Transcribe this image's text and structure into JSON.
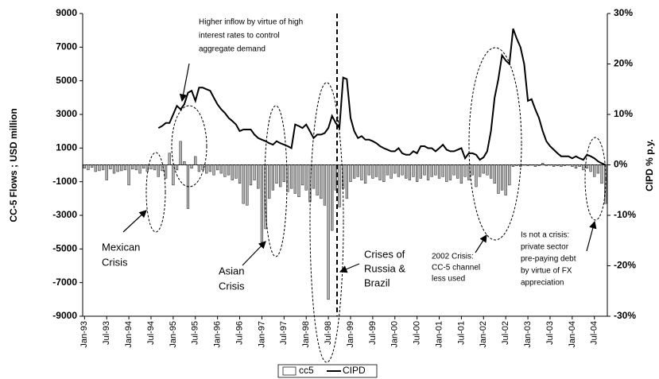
{
  "chart_data": {
    "type": "bar-line",
    "y_label": "CC-5 Flows ; USD million",
    "y2_label": "CIPD % p.y.",
    "categories": [
      "Jan-93",
      null,
      null,
      null,
      null,
      null,
      "Jul-93",
      null,
      null,
      null,
      null,
      null,
      "Jan-94",
      null,
      null,
      null,
      null,
      null,
      "Jul-94",
      null,
      null,
      null,
      null,
      null,
      "Jan-95",
      null,
      null,
      null,
      null,
      null,
      "Jul-95",
      null,
      null,
      null,
      null,
      null,
      "Jan-96",
      null,
      null,
      null,
      null,
      null,
      "Jul-96",
      null,
      null,
      null,
      null,
      null,
      "Jan-97",
      null,
      null,
      null,
      null,
      null,
      "Jul-97",
      null,
      null,
      null,
      null,
      null,
      "Jan-98",
      null,
      null,
      null,
      null,
      null,
      "Jul-98",
      null,
      null,
      null,
      null,
      null,
      "Jan-99",
      null,
      null,
      null,
      null,
      null,
      "Jul-99",
      null,
      null,
      null,
      null,
      null,
      "Jan-00",
      null,
      null,
      null,
      null,
      null,
      "Jul-00",
      null,
      null,
      null,
      null,
      null,
      "Jan-01",
      null,
      null,
      null,
      null,
      null,
      "Jul-01",
      null,
      null,
      null,
      null,
      null,
      "Jan-02",
      null,
      null,
      null,
      null,
      null,
      "Jul-02",
      null,
      null,
      null,
      null,
      null,
      "Jan-03",
      null,
      null,
      null,
      null,
      null,
      "Jul-03",
      null,
      null,
      null,
      null,
      null,
      "Jan-04",
      null,
      null,
      null,
      null,
      null,
      "Jul-04",
      null,
      null,
      null
    ],
    "series": [
      {
        "name": "cc5",
        "color": "#b0b0b0",
        "values": [
          -200,
          -300,
          -150,
          -400,
          -350,
          -300,
          -900,
          -250,
          -500,
          -400,
          -350,
          -300,
          -1200,
          -250,
          -300,
          -500,
          -200,
          -400,
          -250,
          -300,
          -700,
          -350,
          -800,
          700,
          -1200,
          -300,
          1400,
          200,
          -2600,
          -200,
          500,
          -400,
          -300,
          -500,
          -400,
          -600,
          -300,
          -500,
          -700,
          -600,
          -900,
          -800,
          -1100,
          -2300,
          -2400,
          -1200,
          -900,
          -1400,
          -4600,
          -3800,
          -2000,
          -1500,
          -1100,
          -1300,
          -1000,
          -1600,
          -1400,
          -1700,
          -1900,
          -1200,
          -1500,
          -2200,
          -1400,
          -1800,
          -2000,
          -2400,
          -8000,
          -3900,
          -1500,
          -2500,
          -1400,
          -2000,
          -1000,
          -800,
          -700,
          -900,
          -1100,
          -600,
          -800,
          -700,
          -900,
          -1000,
          -600,
          -800,
          -500,
          -700,
          -600,
          -800,
          -900,
          -700,
          -1000,
          -800,
          -600,
          -900,
          -700,
          -600,
          -800,
          -700,
          -1000,
          -900,
          -600,
          -800,
          -1100,
          -700,
          -900,
          -600,
          -1300,
          -700,
          -500,
          -600,
          -800,
          -1100,
          -1700,
          -1500,
          -1800,
          -1200,
          -100,
          -50,
          -100,
          0,
          -50,
          0,
          -100,
          -50,
          100,
          -50,
          0,
          -100,
          -50,
          -100,
          -50,
          0,
          -100,
          -200,
          -100,
          -300,
          -200,
          -400,
          -700,
          -500,
          -1100,
          -2300
        ]
      },
      {
        "name": "CIPD",
        "color": "#000000",
        "axis": "y2",
        "values": [
          null,
          null,
          null,
          null,
          null,
          null,
          null,
          null,
          null,
          null,
          null,
          null,
          null,
          null,
          null,
          null,
          null,
          null,
          null,
          null,
          7.3,
          7.7,
          8.3,
          8.3,
          10,
          11.7,
          11,
          12,
          14.3,
          14.7,
          12.7,
          15.3,
          15.3,
          15,
          14.7,
          13.3,
          12,
          11,
          10.3,
          9.3,
          8.7,
          8,
          6.7,
          7,
          7,
          7,
          6,
          5.3,
          5,
          4.7,
          4.3,
          4,
          4.7,
          4.3,
          4,
          3.7,
          3.3,
          8,
          7.7,
          7.3,
          8,
          6.7,
          5.3,
          6,
          6,
          6.3,
          7.3,
          9.7,
          8.3,
          7.3,
          17.3,
          17,
          9.3,
          6.7,
          5.3,
          5.7,
          5,
          5,
          4.7,
          4.3,
          3.7,
          3.3,
          3,
          2.7,
          2.7,
          3.3,
          2.3,
          2,
          2,
          2.7,
          2.3,
          3.7,
          3.7,
          3.3,
          3.3,
          2.7,
          3.3,
          4,
          3,
          2.7,
          2.7,
          3,
          3.3,
          1.3,
          2.3,
          2.3,
          2,
          1,
          1.5,
          2.7,
          6.7,
          13.3,
          17,
          21.7,
          20.7,
          20,
          27,
          25,
          23.3,
          20,
          12.7,
          13,
          11,
          9.3,
          6.7,
          4.7,
          3.7,
          3,
          2.3,
          1.7,
          1.7,
          1.7,
          1.3,
          1.7,
          1.3,
          1,
          2,
          1.7,
          1.3,
          0.7,
          0.3,
          0
        ]
      }
    ],
    "ylim": [
      -9000,
      9000
    ],
    "yticks": [
      -9000,
      -7000,
      -5000,
      -3000,
      -1000,
      1000,
      3000,
      5000,
      7000,
      9000
    ],
    "y2lim": [
      -30,
      30
    ],
    "y2ticks": [
      {
        "value": -30,
        "label": "-30%"
      },
      {
        "value": -20,
        "label": "-20%"
      },
      {
        "value": -10,
        "label": "-10%"
      },
      {
        "value": 0,
        "label": "0%"
      },
      {
        "value": 10,
        "label": "10%"
      },
      {
        "value": 20,
        "label": "20%"
      },
      {
        "value": 30,
        "label": "30%"
      }
    ],
    "legend": "bottom",
    "annotations": [
      {
        "lines": [
          "Higher inflow by virtue of high",
          "interest rates to control",
          "aggregate demand"
        ]
      },
      {
        "lines": [
          "Mexican",
          "Crisis"
        ]
      },
      {
        "lines": [
          "Asian",
          "Crisis"
        ]
      },
      {
        "lines": [
          "Crises of",
          "Russia &",
          "Brazil"
        ]
      },
      {
        "lines": [
          "2002 Crisis:",
          "CC-5 channel",
          "less used"
        ]
      },
      {
        "lines": [
          "Is not a crisis:",
          "private sector",
          "pre-paying debt",
          "by virtue of FX",
          "appreciation"
        ]
      }
    ]
  }
}
